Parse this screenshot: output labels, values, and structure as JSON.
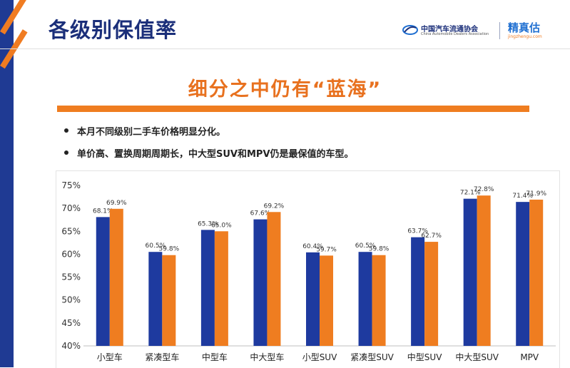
{
  "slide": {
    "title": "各级别保值率",
    "headline": "细分之中仍有“蓝海”",
    "bullets": [
      "本月不同级别二手车价格明显分化。",
      "单价高、置换周期周期长，中大型SUV和MPV仍是最保值的车型。"
    ]
  },
  "logos": {
    "cada_cn": "中国汽车流通协会",
    "cada_en": "China Automobile Dealers Association",
    "jzg_cn": "精真估",
    "jzg_en": "jingzhengu.com"
  },
  "colors": {
    "series_a": "#1e3a9f",
    "series_b": "#ef7d20",
    "title": "#1b2f7a",
    "accent": "#ef7d20"
  },
  "chart_data": {
    "type": "bar",
    "categories": [
      "小型车",
      "紧凑型车",
      "中型车",
      "中大型车",
      "小型SUV",
      "紧凑型SUV",
      "中型SUV",
      "中大型SUV",
      "MPV"
    ],
    "series": [
      {
        "values": [
          68.1,
          60.5,
          65.3,
          67.6,
          60.4,
          60.5,
          63.7,
          72.1,
          71.4
        ]
      },
      {
        "values": [
          69.9,
          59.8,
          65.0,
          69.2,
          59.7,
          59.8,
          62.7,
          72.8,
          71.9
        ]
      }
    ],
    "value_labels": [
      [
        "68.1%",
        "60.5%",
        "65.3%",
        "67.6%",
        "60.4%",
        "60.5%",
        "63.7%",
        "72.1%",
        "71.4%"
      ],
      [
        "69.9%",
        "59.8%",
        "65.0%",
        "69.2%",
        "59.7%",
        "59.8%",
        "62.7%",
        "72.8%",
        "71.9%"
      ]
    ],
    "yticks": [
      "40%",
      "45%",
      "50%",
      "55%",
      "60%",
      "65%",
      "70%",
      "75%"
    ],
    "ylim": [
      40,
      75
    ],
    "grid": false,
    "legend": "none"
  }
}
